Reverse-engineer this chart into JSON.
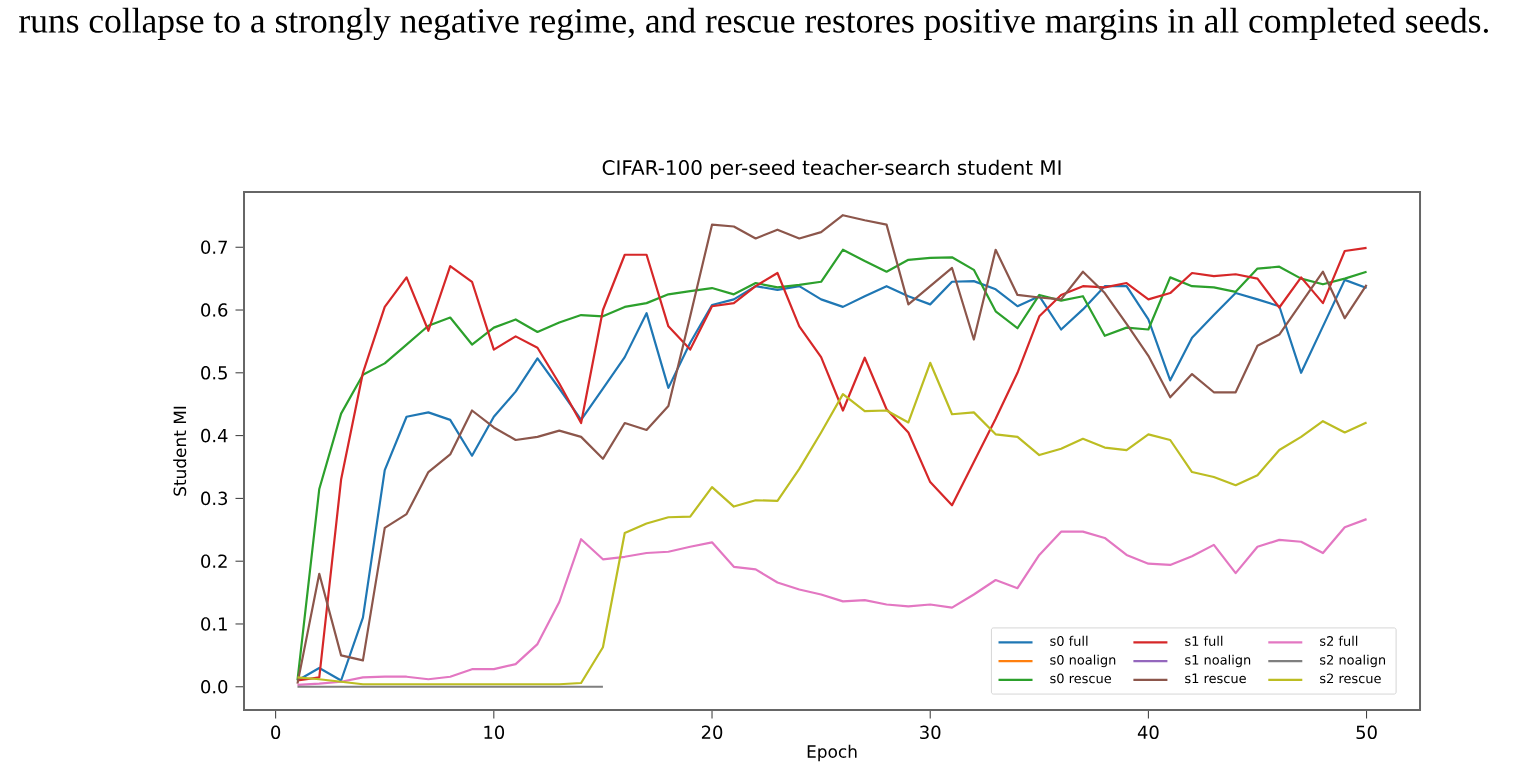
{
  "chart_data": {
    "type": "line",
    "title": "CIFAR-100 per-seed teacher-search student MI",
    "xlabel": "Epoch",
    "ylabel": "Student MI",
    "annotations": [
      "runs collapse to a strongly negative regime, and rescue restores positive margins in all completed seeds."
    ],
    "x": [
      1,
      2,
      3,
      4,
      5,
      6,
      7,
      8,
      9,
      10,
      11,
      12,
      13,
      14,
      15,
      16,
      17,
      18,
      19,
      20,
      21,
      22,
      23,
      24,
      25,
      26,
      27,
      28,
      29,
      30,
      31,
      32,
      33,
      34,
      35,
      36,
      37,
      38,
      39,
      40,
      41,
      42,
      43,
      44,
      45,
      46,
      47,
      48,
      49,
      50
    ],
    "xlim": [
      -1.45,
      52.45
    ],
    "xticks": [
      0,
      10,
      20,
      30,
      40,
      50
    ],
    "ylim": [
      -0.037,
      0.788
    ],
    "yticks": [
      {
        "value": 0,
        "label": "0.0"
      },
      0.1,
      0.2,
      0.3,
      0.4,
      0.5,
      0.6,
      0.7
    ],
    "grid": false,
    "legend": "bottom right",
    "line_style": "solid",
    "marker": "none",
    "series": [
      {
        "name": "s0 full",
        "color": "#1f77b4",
        "values": [
          0.01,
          0.03,
          0.01,
          0.11,
          0.345,
          0.43,
          0.437,
          0.425,
          0.368,
          0.43,
          0.47,
          0.523,
          0.475,
          0.425,
          0.475,
          0.525,
          0.595,
          0.476,
          0.548,
          0.608,
          0.617,
          0.638,
          0.632,
          0.638,
          0.617,
          0.605,
          0.622,
          0.638,
          0.622,
          0.609,
          0.645,
          0.646,
          0.633,
          0.606,
          0.622,
          0.569,
          0.601,
          0.638,
          0.638,
          0.585,
          0.488,
          0.556,
          0.592,
          0.627,
          0.617,
          0.606,
          0.5,
          0.574,
          0.648,
          0.635
        ]
      },
      {
        "name": "s0 noalign",
        "color": "#ff7f0e",
        "values": [
          null,
          null,
          null,
          null,
          null,
          null,
          null,
          null,
          null,
          null,
          null,
          null,
          null,
          null,
          null,
          null,
          null,
          null,
          null,
          null,
          null,
          null,
          null,
          null,
          null,
          null,
          null,
          null,
          null,
          null,
          null,
          null,
          null,
          null,
          null,
          null,
          null,
          null,
          null,
          null,
          null,
          null,
          null,
          null,
          null,
          null,
          null,
          null,
          null,
          null
        ]
      },
      {
        "name": "s0 rescue",
        "color": "#2ca02c",
        "values": [
          0.01,
          0.315,
          0.435,
          0.497,
          0.515,
          0.545,
          0.575,
          0.588,
          0.545,
          0.572,
          0.585,
          0.565,
          0.58,
          0.592,
          0.59,
          0.605,
          0.611,
          0.625,
          0.63,
          0.635,
          0.625,
          0.643,
          0.636,
          0.64,
          0.645,
          0.696,
          0.678,
          0.661,
          0.68,
          0.683,
          0.684,
          0.664,
          0.598,
          0.571,
          0.624,
          0.615,
          0.622,
          0.559,
          0.572,
          0.569,
          0.652,
          0.638,
          0.636,
          0.629,
          0.666,
          0.669,
          0.65,
          0.641,
          0.65,
          0.661
        ]
      },
      {
        "name": "s1 full",
        "color": "#d62728",
        "values": [
          0.01,
          0.015,
          0.33,
          0.5,
          0.605,
          0.652,
          0.567,
          0.67,
          0.645,
          0.537,
          0.558,
          0.54,
          0.483,
          0.42,
          0.6,
          0.688,
          0.688,
          0.574,
          0.537,
          0.606,
          0.611,
          0.638,
          0.659,
          0.574,
          0.525,
          0.44,
          0.524,
          0.442,
          0.405,
          0.326,
          0.289,
          0.358,
          0.427,
          0.5,
          0.59,
          0.624,
          0.638,
          0.636,
          0.643,
          0.617,
          0.627,
          0.659,
          0.654,
          0.657,
          0.65,
          0.604,
          0.652,
          0.611,
          0.694,
          0.699
        ]
      },
      {
        "name": "s1 noalign",
        "color": "#9467bd",
        "values": [
          null,
          null,
          null,
          null,
          null,
          null,
          null,
          null,
          null,
          null,
          null,
          null,
          null,
          null,
          null,
          null,
          null,
          null,
          null,
          null,
          null,
          null,
          null,
          null,
          null,
          null,
          null,
          null,
          null,
          null,
          null,
          null,
          null,
          null,
          null,
          null,
          null,
          null,
          null,
          null,
          null,
          null,
          null,
          null,
          null,
          null,
          null,
          null,
          null,
          null
        ]
      },
      {
        "name": "s1 rescue",
        "color": "#8c564b",
        "values": [
          0.005,
          0.18,
          0.05,
          0.042,
          0.253,
          0.275,
          0.342,
          0.37,
          0.44,
          0.413,
          0.393,
          0.398,
          0.408,
          0.398,
          0.363,
          0.42,
          0.409,
          0.447,
          0.59,
          0.736,
          0.733,
          0.714,
          0.728,
          0.714,
          0.724,
          0.751,
          0.743,
          0.736,
          0.609,
          0.638,
          0.667,
          0.553,
          0.696,
          0.624,
          0.62,
          0.617,
          0.661,
          0.627,
          0.578,
          0.527,
          0.461,
          0.498,
          0.469,
          0.469,
          0.543,
          0.561,
          0.611,
          0.661,
          0.587,
          0.64
        ]
      },
      {
        "name": "s2 full",
        "color": "#e377c2",
        "values": [
          0.003,
          0.005,
          0.008,
          0.015,
          0.016,
          0.016,
          0.012,
          0.016,
          0.028,
          0.028,
          0.036,
          0.068,
          0.135,
          0.235,
          0.203,
          0.207,
          0.213,
          0.215,
          0.223,
          0.23,
          0.191,
          0.187,
          0.166,
          0.155,
          0.147,
          0.136,
          0.138,
          0.131,
          0.128,
          0.131,
          0.126,
          0.147,
          0.17,
          0.157,
          0.21,
          0.247,
          0.247,
          0.237,
          0.21,
          0.196,
          0.194,
          0.208,
          0.226,
          0.181,
          0.223,
          0.234,
          0.231,
          0.213,
          0.254,
          0.267
        ]
      },
      {
        "name": "s2 noalign",
        "color": "#7f7f7f",
        "values": [
          0,
          0,
          0,
          0,
          0,
          0,
          0,
          0,
          0,
          0,
          0,
          0,
          0,
          0,
          0,
          null,
          null,
          null,
          null,
          null,
          null,
          null,
          null,
          null,
          null,
          null,
          null,
          null,
          null,
          null,
          null,
          null,
          null,
          null,
          null,
          null,
          null,
          null,
          null,
          null,
          null,
          null,
          null,
          null,
          null,
          null,
          null,
          null,
          null,
          null
        ]
      },
      {
        "name": "s2 rescue",
        "color": "#bcbd22",
        "values": [
          0.015,
          0.012,
          0.008,
          0.004,
          0.004,
          0.004,
          0.004,
          0.004,
          0.004,
          0.004,
          0.004,
          0.004,
          0.004,
          0.006,
          0.063,
          0.245,
          0.26,
          0.27,
          0.271,
          0.318,
          0.287,
          0.297,
          0.296,
          0.347,
          0.405,
          0.466,
          0.439,
          0.44,
          0.421,
          0.516,
          0.434,
          0.437,
          0.402,
          0.398,
          0.369,
          0.379,
          0.395,
          0.381,
          0.377,
          0.402,
          0.393,
          0.342,
          0.334,
          0.321,
          0.337,
          0.377,
          0.398,
          0.423,
          0.405,
          0.421
        ]
      }
    ]
  }
}
